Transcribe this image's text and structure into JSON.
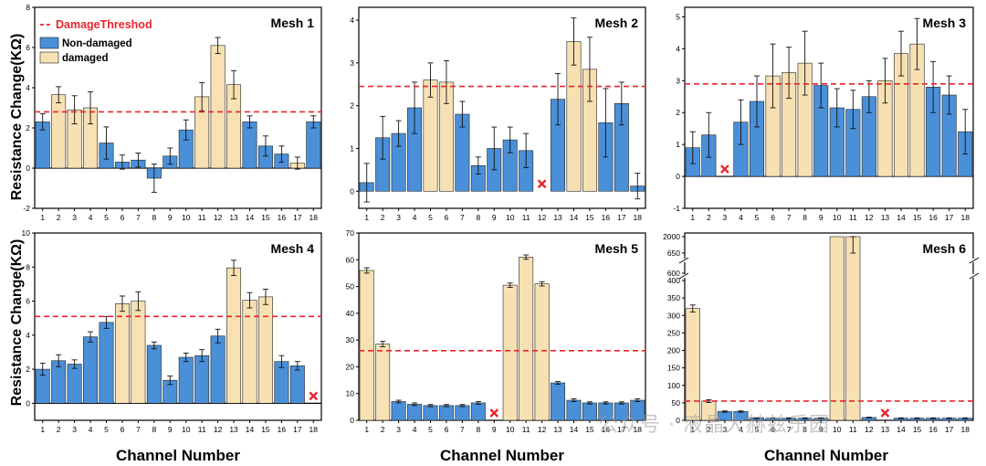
{
  "figure": {
    "ylabel": "Resistance Change(KΩ)",
    "xlabel": "Channel Number",
    "legend": {
      "threshold_label": "DamageThreshod",
      "non_damaged_label": "Non-damaged",
      "damaged_label": "damaged"
    },
    "watermark": "公众号 · 液晶大赫兹乐园"
  },
  "colors": {
    "non_damaged": "#4a90d9",
    "damaged": "#f7e1b3",
    "threshold": "#e8262c",
    "missing": "#e8262c"
  },
  "chart_data": [
    {
      "type": "bar",
      "title": "Mesh 1",
      "categories": [
        "1",
        "2",
        "3",
        "4",
        "5",
        "6",
        "7",
        "8",
        "9",
        "10",
        "11",
        "12",
        "13",
        "14",
        "15",
        "16",
        "17",
        "18"
      ],
      "values": [
        2.3,
        3.65,
        2.9,
        3.0,
        1.25,
        0.3,
        0.4,
        -0.5,
        0.6,
        1.9,
        3.55,
        6.1,
        4.15,
        2.3,
        1.1,
        0.7,
        0.25,
        2.3
      ],
      "errors": [
        0.4,
        0.4,
        0.7,
        0.8,
        0.8,
        0.35,
        0.35,
        0.7,
        0.4,
        0.5,
        0.7,
        0.4,
        0.7,
        0.3,
        0.5,
        0.4,
        0.3,
        0.3
      ],
      "damaged": [
        false,
        true,
        true,
        true,
        false,
        false,
        false,
        false,
        false,
        false,
        true,
        true,
        true,
        false,
        false,
        false,
        true,
        false
      ],
      "missing": [],
      "threshold": 2.8,
      "ylim": [
        -2,
        8
      ],
      "yticks": [
        -2,
        0,
        2,
        4,
        6,
        8
      ],
      "ytick_labels": [
        "-2",
        "0",
        "2",
        "4",
        "6",
        "8"
      ],
      "zero_line": true
    },
    {
      "type": "bar",
      "title": "Mesh 2",
      "categories": [
        "1",
        "2",
        "3",
        "4",
        "5",
        "6",
        "7",
        "8",
        "9",
        "10",
        "11",
        "12",
        "13",
        "14",
        "15",
        "16",
        "17",
        "18"
      ],
      "values": [
        0.2,
        1.25,
        1.35,
        1.95,
        2.6,
        2.55,
        1.8,
        0.6,
        1.0,
        1.2,
        0.95,
        null,
        2.15,
        3.5,
        2.85,
        1.6,
        2.05,
        0.12
      ],
      "errors": [
        0.45,
        0.5,
        0.3,
        0.6,
        0.4,
        0.5,
        0.3,
        0.2,
        0.5,
        0.3,
        0.4,
        0,
        0.6,
        0.55,
        0.75,
        0.8,
        0.5,
        0.3
      ],
      "damaged": [
        false,
        false,
        false,
        false,
        true,
        true,
        false,
        false,
        false,
        false,
        false,
        false,
        false,
        true,
        true,
        false,
        false,
        false
      ],
      "missing": [
        12
      ],
      "threshold": 2.45,
      "ylim": [
        -0.4,
        4.3
      ],
      "yticks": [
        0,
        1,
        2,
        3,
        4
      ],
      "ytick_labels": [
        "0",
        "1",
        "2",
        "3",
        "4"
      ],
      "zero_line": false
    },
    {
      "type": "bar",
      "title": "Mesh 3",
      "categories": [
        "1",
        "2",
        "3",
        "4",
        "5",
        "6",
        "7",
        "8",
        "9",
        "10",
        "11",
        "12",
        "13",
        "14",
        "15",
        "16",
        "17",
        "18"
      ],
      "values": [
        0.9,
        1.3,
        null,
        1.7,
        2.35,
        3.15,
        3.25,
        3.55,
        2.85,
        2.15,
        2.1,
        2.5,
        3.0,
        3.85,
        4.15,
        2.8,
        2.55,
        1.4
      ],
      "errors": [
        0.5,
        0.7,
        0,
        0.7,
        0.8,
        1.0,
        0.8,
        1.0,
        0.7,
        0.6,
        0.6,
        0.5,
        0.7,
        0.7,
        0.8,
        0.8,
        0.6,
        0.7
      ],
      "damaged": [
        false,
        false,
        false,
        false,
        false,
        true,
        true,
        true,
        false,
        false,
        false,
        false,
        true,
        true,
        true,
        false,
        false,
        false
      ],
      "missing": [
        3
      ],
      "threshold": 2.9,
      "ylim": [
        -1,
        5.3
      ],
      "yticks": [
        -1,
        0,
        1,
        2,
        3,
        4,
        5
      ],
      "ytick_labels": [
        "-1",
        "0",
        "1",
        "2",
        "3",
        "4",
        "5"
      ],
      "zero_line": true
    },
    {
      "type": "bar",
      "title": "Mesh 4",
      "categories": [
        "1",
        "2",
        "3",
        "4",
        "5",
        "6",
        "7",
        "8",
        "9",
        "10",
        "11",
        "12",
        "13",
        "14",
        "15",
        "16",
        "17",
        "18"
      ],
      "values": [
        2.0,
        2.5,
        2.3,
        3.9,
        4.75,
        5.85,
        6.0,
        3.4,
        1.35,
        2.7,
        2.8,
        3.95,
        7.95,
        6.05,
        6.25,
        2.45,
        2.2,
        null
      ],
      "errors": [
        0.35,
        0.35,
        0.25,
        0.3,
        0.35,
        0.45,
        0.55,
        0.2,
        0.25,
        0.25,
        0.35,
        0.4,
        0.45,
        0.45,
        0.45,
        0.35,
        0.25,
        0
      ],
      "damaged": [
        false,
        false,
        false,
        false,
        false,
        true,
        true,
        false,
        false,
        false,
        false,
        false,
        true,
        true,
        true,
        false,
        false,
        false
      ],
      "missing": [
        18
      ],
      "threshold": 5.1,
      "ylim": [
        -1,
        10
      ],
      "yticks": [
        0,
        2,
        4,
        6,
        8,
        10
      ],
      "ytick_labels": [
        "0",
        "2",
        "4",
        "6",
        "8",
        "10"
      ],
      "zero_line": true
    },
    {
      "type": "bar",
      "title": "Mesh 5",
      "categories": [
        "1",
        "2",
        "3",
        "4",
        "5",
        "6",
        "7",
        "8",
        "9",
        "10",
        "11",
        "12",
        "13",
        "14",
        "15",
        "16",
        "17",
        "18"
      ],
      "values": [
        56,
        28.5,
        7,
        6,
        5.5,
        5.5,
        5.5,
        6.5,
        null,
        50.5,
        61,
        51,
        14,
        7.5,
        6.5,
        6.5,
        6.5,
        7.5
      ],
      "errors": [
        1,
        1,
        0.5,
        0.5,
        0.4,
        0.4,
        0.4,
        0.5,
        0,
        0.8,
        0.8,
        0.8,
        0.5,
        0.5,
        0.4,
        0.4,
        0.4,
        0.5
      ],
      "damaged": [
        true,
        true,
        false,
        false,
        false,
        false,
        false,
        false,
        false,
        true,
        true,
        true,
        false,
        false,
        false,
        false,
        false,
        false
      ],
      "missing": [
        9
      ],
      "threshold": 26,
      "ylim": [
        0,
        70
      ],
      "yticks": [
        0,
        10,
        20,
        30,
        40,
        50,
        60,
        70
      ],
      "ytick_labels": [
        "0",
        "10",
        "20",
        "30",
        "40",
        "50",
        "60",
        "70"
      ],
      "zero_line": false
    },
    {
      "type": "bar",
      "title": "Mesh 6",
      "categories": [
        "1",
        "2",
        "3",
        "4",
        "5",
        "6",
        "7",
        "8",
        "9",
        "10",
        "11",
        "12",
        "13",
        "14",
        "15",
        "16",
        "17",
        "18"
      ],
      "values": [
        320,
        55,
        25,
        25,
        6,
        6,
        6,
        6,
        6,
        2000,
        670,
        8,
        null,
        6,
        6,
        6,
        6,
        6
      ],
      "errors": [
        10,
        4,
        2,
        2,
        1,
        1,
        1,
        1,
        1,
        0,
        20,
        1,
        0,
        1,
        1,
        1,
        1,
        1
      ],
      "damaged": [
        true,
        true,
        false,
        false,
        false,
        false,
        false,
        false,
        false,
        true,
        true,
        false,
        false,
        false,
        false,
        false,
        false,
        false
      ],
      "missing": [
        13
      ],
      "threshold": 55,
      "ylim": [
        0,
        2000
      ],
      "yticks": [
        0,
        50,
        100,
        150,
        200,
        250,
        300,
        350,
        400,
        600,
        650,
        2000
      ],
      "ytick_labels": [
        "0",
        "50",
        "100",
        "150",
        "200",
        "250",
        "300",
        "350",
        "400",
        "600",
        "650",
        "2000"
      ],
      "broken_axis": true,
      "zero_line": false
    }
  ]
}
